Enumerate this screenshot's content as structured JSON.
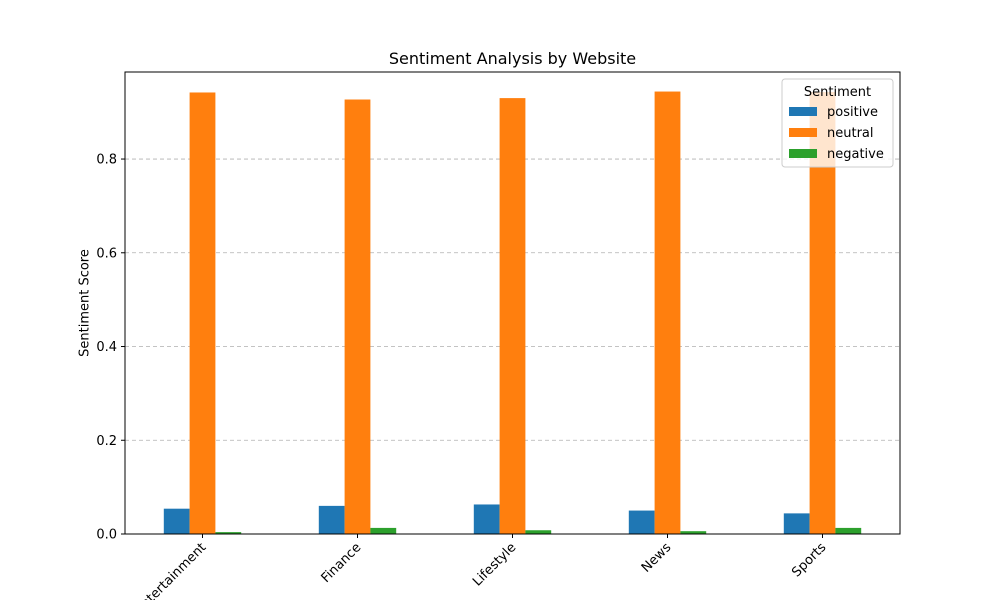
{
  "chart_data": {
    "type": "bar",
    "title": "Sentiment Analysis by Website",
    "xlabel": "",
    "ylabel": "Sentiment Score",
    "categories": [
      "Entertainment",
      "Finance",
      "Lifestyle",
      "News",
      "Sports"
    ],
    "series": [
      {
        "name": "positive",
        "values": [
          0.054,
          0.06,
          0.063,
          0.05,
          0.044
        ],
        "color": "#1f77b4"
      },
      {
        "name": "neutral",
        "values": [
          0.942,
          0.927,
          0.93,
          0.944,
          0.943
        ],
        "color": "#ff7f0e"
      },
      {
        "name": "negative",
        "values": [
          0.004,
          0.013,
          0.008,
          0.006,
          0.013
        ],
        "color": "#2ca02c"
      }
    ],
    "ylim": [
      0,
      0.9857
    ],
    "yticks": [
      0.0,
      0.2,
      0.4,
      0.6,
      0.8
    ],
    "ytick_labels": [
      "0.0",
      "0.2",
      "0.4",
      "0.6",
      "0.8"
    ],
    "grid": {
      "axis": "y",
      "style": "dashed",
      "color": "#b0b0b0"
    },
    "legend": {
      "title": "Sentiment",
      "placement": "top-right"
    }
  }
}
